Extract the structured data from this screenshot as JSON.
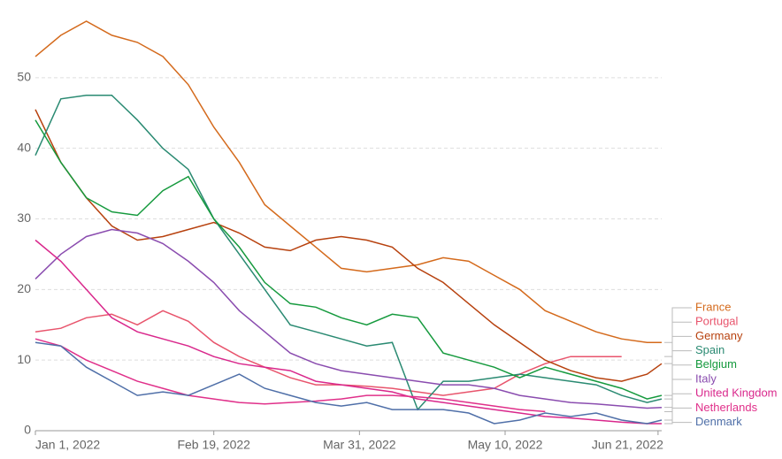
{
  "chart_data": {
    "type": "line",
    "x": [
      0,
      7,
      14,
      21,
      28,
      35,
      42,
      49,
      56,
      63,
      70,
      77,
      84,
      91,
      98,
      105,
      112,
      119,
      126,
      133,
      140,
      147,
      154,
      161,
      168,
      172
    ],
    "xlim": [
      0,
      172
    ],
    "xticks": [
      {
        "value": 0,
        "label": "Jan 1, 2022"
      },
      {
        "value": 49,
        "label": "Feb 19, 2022"
      },
      {
        "value": 89,
        "label": "Mar 31, 2022"
      },
      {
        "value": 129,
        "label": "May 10, 2022"
      },
      {
        "value": 171,
        "label": "Jun 21, 2022"
      }
    ],
    "ylim": [
      0,
      59
    ],
    "yticks": [
      0,
      10,
      20,
      30,
      40,
      50
    ],
    "grid": true,
    "series": [
      {
        "name": "France",
        "color": "#d46a1c",
        "values": [
          53,
          56,
          58,
          56,
          55,
          53,
          49,
          43,
          38,
          32,
          29,
          26,
          23,
          22.5,
          23,
          23.5,
          24.5,
          24,
          22,
          20,
          17,
          15.5,
          14,
          13,
          12.5,
          12.5
        ]
      },
      {
        "name": "Portugal",
        "color": "#e8546c",
        "values": [
          14,
          14.5,
          16,
          16.5,
          15,
          17,
          15.5,
          12.5,
          10.5,
          9,
          7.5,
          6.5,
          6.5,
          6.3,
          6,
          5.5,
          5,
          5.5,
          6,
          8,
          9.5,
          10.5,
          10.5,
          10.5,
          null,
          null
        ]
      },
      {
        "name": "Germany",
        "color": "#b7410e",
        "values": [
          45.5,
          38,
          33,
          29,
          27,
          27.5,
          28.5,
          29.5,
          28,
          26,
          25.5,
          27,
          27.5,
          27,
          26,
          23,
          21,
          18,
          15,
          12.5,
          10,
          8.5,
          7.5,
          7,
          8,
          9.5
        ]
      },
      {
        "name": "Spain",
        "color": "#2a8a72",
        "values": [
          39,
          47,
          47.5,
          47.5,
          44,
          40,
          37,
          30,
          25,
          20,
          15,
          14,
          13,
          12,
          12.5,
          3,
          7,
          7,
          7.5,
          8,
          7.5,
          7,
          6.5,
          5,
          4,
          4.5
        ]
      },
      {
        "name": "Belgium",
        "color": "#169a3e",
        "values": [
          44,
          38,
          33,
          31,
          30.5,
          34,
          36,
          30,
          26,
          21,
          18,
          17.5,
          16,
          15,
          16.5,
          16,
          11,
          10,
          9,
          7.5,
          9,
          8,
          7,
          6,
          4.5,
          5
        ]
      },
      {
        "name": "Italy",
        "color": "#8a4caf",
        "values": [
          21.5,
          25,
          27.5,
          28.5,
          28,
          26.5,
          24,
          21,
          17,
          14,
          11,
          9.5,
          8.5,
          8,
          7.5,
          7,
          6.5,
          6.5,
          6,
          5,
          4.5,
          4,
          3.8,
          3.5,
          3.2,
          3.3
        ]
      },
      {
        "name": "United Kingdom",
        "color": "#d9288c",
        "values": [
          27,
          24,
          20,
          16,
          14,
          13,
          12,
          10.5,
          9.5,
          9,
          8.5,
          7,
          6.5,
          6,
          5.5,
          4.5,
          4,
          3.5,
          3,
          2.5,
          2,
          1.8,
          1.5,
          1.2,
          1,
          1
        ]
      },
      {
        "name": "Netherlands",
        "color": "#e0308a",
        "values": [
          13,
          12,
          10,
          8.5,
          7,
          6,
          5,
          4.5,
          4,
          3.8,
          4,
          4.2,
          4.5,
          5,
          5,
          4.8,
          4.5,
          4,
          3.5,
          3,
          2.7,
          null,
          null,
          null,
          null,
          null
        ]
      },
      {
        "name": "Denmark",
        "color": "#4f6fa8",
        "values": [
          12.5,
          12,
          9,
          7,
          5,
          5.5,
          5,
          6.5,
          8,
          6,
          5,
          4,
          3.5,
          4,
          3,
          3,
          3,
          2.5,
          1,
          1.5,
          2.5,
          2,
          2.5,
          1.5,
          1,
          1.5
        ]
      }
    ]
  }
}
